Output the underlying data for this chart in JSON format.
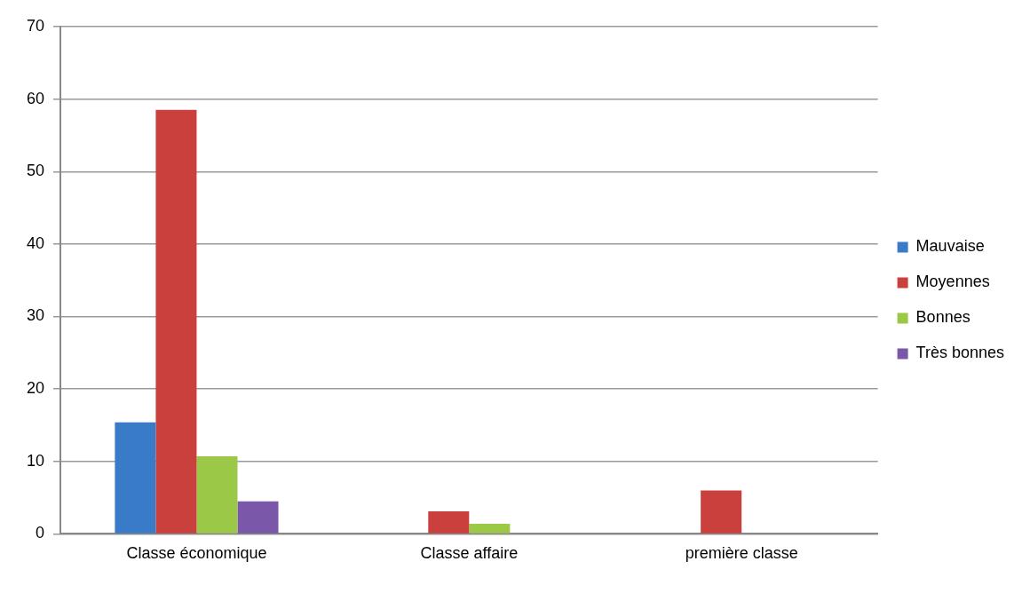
{
  "chart_data": {
    "type": "bar",
    "categories": [
      "Classe économique",
      "Classe affaire",
      "première classe"
    ],
    "series": [
      {
        "name": "Mauvaise",
        "color": "#3a7bc8",
        "values": [
          15.4,
          null,
          null
        ]
      },
      {
        "name": "Moyennes",
        "color": "#c9403c",
        "values": [
          58.5,
          3.1,
          6.0
        ]
      },
      {
        "name": "Bonnes",
        "color": "#9bc846",
        "values": [
          10.7,
          1.4,
          null
        ]
      },
      {
        "name": "Très bonnes",
        "color": "#7a57a8",
        "values": [
          4.5,
          null,
          null
        ]
      }
    ],
    "ylim": [
      0,
      70
    ],
    "yticks": [
      0,
      10,
      20,
      30,
      40,
      50,
      60,
      70
    ],
    "grid": "y",
    "legend": "right"
  }
}
